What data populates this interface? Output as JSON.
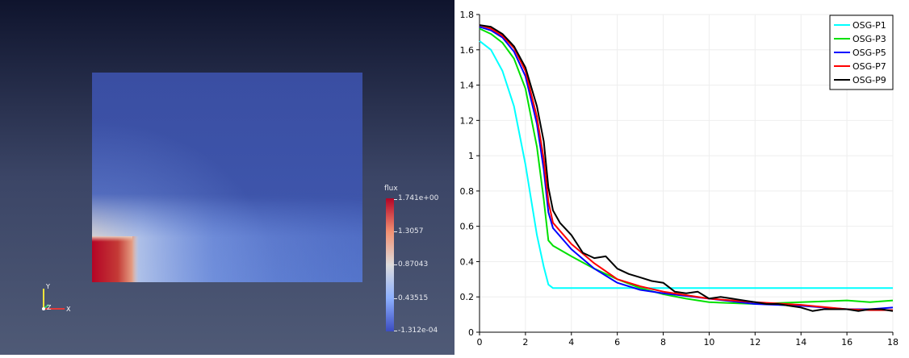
{
  "render_view": {
    "scalar_bar": {
      "title": "flux",
      "labels": [
        "1.741e+00",
        "1.3057",
        "0.87043",
        "0.43515",
        "-1.312e-04"
      ]
    },
    "axes": {
      "x": "X",
      "y": "Y",
      "z": "Z"
    },
    "colors": {
      "low": "#3b4cc0",
      "mid": "#dddcdc",
      "high": "#b40426"
    }
  },
  "chart_data": {
    "type": "line",
    "xlim": [
      0,
      18
    ],
    "ylim": [
      0,
      1.8
    ],
    "xticks": [
      0,
      2,
      4,
      6,
      8,
      10,
      12,
      14,
      16,
      18
    ],
    "yticks": [
      0,
      0.2,
      0.4,
      0.6,
      0.8,
      1,
      1.2,
      1.4,
      1.6,
      1.8
    ],
    "xtick_labels": [
      "0",
      "2",
      "4",
      "6",
      "8",
      "10",
      "12",
      "14",
      "16",
      "18"
    ],
    "ytick_labels": [
      "0",
      "0.2",
      "0.4",
      "0.6",
      "0.8",
      "1",
      "1.2",
      "1.4",
      "1.6",
      "1.8"
    ],
    "legend_position": "top-right",
    "grid": true,
    "series": [
      {
        "name": "OSG-P1",
        "color": "#00ffff",
        "x": [
          0,
          0.5,
          1,
          1.5,
          2,
          2.5,
          2.8,
          3,
          3.2,
          4,
          6,
          8,
          10,
          12,
          14,
          16,
          17.5,
          18
        ],
        "y": [
          1.65,
          1.6,
          1.48,
          1.28,
          0.95,
          0.55,
          0.37,
          0.27,
          0.25,
          0.25,
          0.25,
          0.25,
          0.25,
          0.25,
          0.25,
          0.25,
          0.25,
          0.25
        ]
      },
      {
        "name": "OSG-P3",
        "color": "#00e000",
        "x": [
          0,
          0.5,
          1,
          1.5,
          2,
          2.5,
          2.8,
          3,
          3.2,
          4,
          5,
          6,
          7,
          8,
          9,
          10,
          12,
          14,
          16,
          17,
          18
        ],
        "y": [
          1.72,
          1.69,
          1.64,
          1.55,
          1.38,
          1.05,
          0.75,
          0.52,
          0.49,
          0.43,
          0.36,
          0.3,
          0.25,
          0.215,
          0.19,
          0.17,
          0.16,
          0.17,
          0.18,
          0.17,
          0.18
        ]
      },
      {
        "name": "OSG-P5",
        "color": "#0000ff",
        "x": [
          0,
          0.5,
          1,
          1.5,
          2,
          2.5,
          2.8,
          3,
          3.2,
          4,
          5,
          6,
          7,
          8,
          10,
          12,
          14,
          16,
          17,
          18
        ],
        "y": [
          1.73,
          1.71,
          1.67,
          1.59,
          1.45,
          1.18,
          0.92,
          0.68,
          0.59,
          0.47,
          0.36,
          0.28,
          0.24,
          0.22,
          0.19,
          0.16,
          0.15,
          0.13,
          0.13,
          0.14
        ]
      },
      {
        "name": "OSG-P7",
        "color": "#ff0000",
        "x": [
          0,
          0.5,
          1,
          1.5,
          2,
          2.5,
          2.8,
          3,
          3.2,
          4,
          5,
          6,
          7,
          8,
          10,
          12,
          14,
          16,
          17,
          18
        ],
        "y": [
          1.74,
          1.72,
          1.68,
          1.61,
          1.48,
          1.22,
          0.98,
          0.74,
          0.62,
          0.5,
          0.39,
          0.3,
          0.26,
          0.23,
          0.19,
          0.17,
          0.155,
          0.13,
          0.125,
          0.125
        ]
      },
      {
        "name": "OSG-P9",
        "color": "#000000",
        "x": [
          0,
          0.5,
          1,
          1.5,
          2,
          2.5,
          2.8,
          3,
          3.2,
          3.5,
          4,
          4.5,
          5,
          5.5,
          6,
          6.5,
          7,
          7.5,
          8,
          8.5,
          9,
          9.5,
          10,
          10.5,
          11,
          11.5,
          12,
          12.5,
          13,
          13.5,
          14,
          14.5,
          15,
          15.5,
          16,
          16.5,
          17,
          17.5,
          18
        ],
        "y": [
          1.74,
          1.73,
          1.69,
          1.62,
          1.5,
          1.28,
          1.08,
          0.82,
          0.69,
          0.62,
          0.55,
          0.45,
          0.42,
          0.43,
          0.36,
          0.33,
          0.31,
          0.29,
          0.28,
          0.23,
          0.22,
          0.23,
          0.19,
          0.2,
          0.19,
          0.18,
          0.17,
          0.16,
          0.16,
          0.15,
          0.14,
          0.12,
          0.13,
          0.13,
          0.13,
          0.12,
          0.13,
          0.13,
          0.12
        ]
      }
    ]
  }
}
